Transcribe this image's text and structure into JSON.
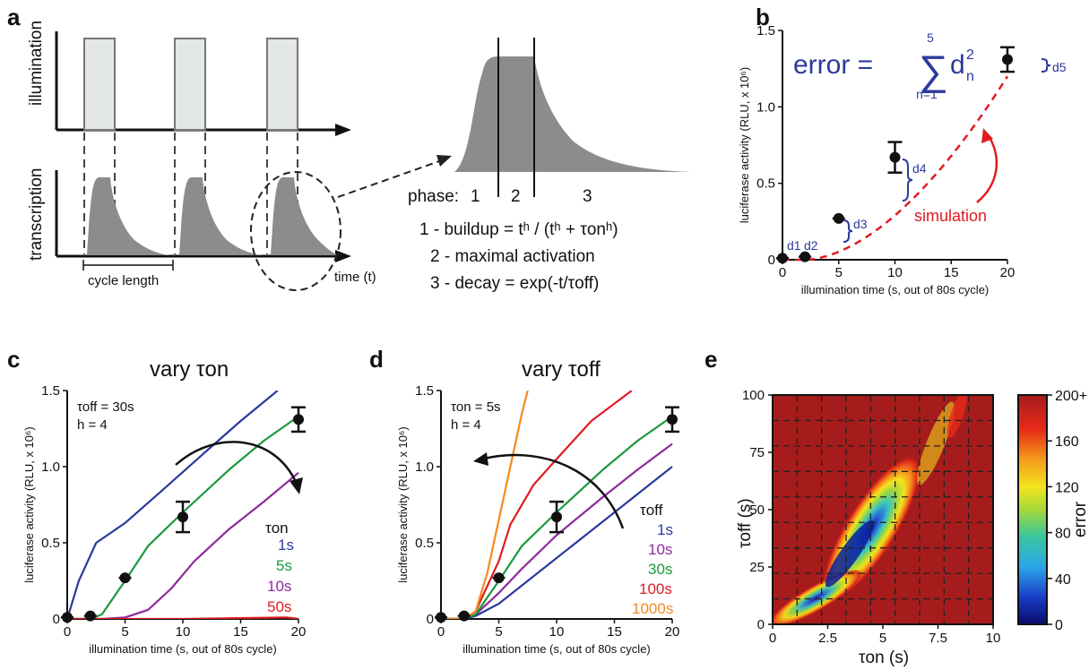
{
  "panels": {
    "a": {
      "letter": "a",
      "ylabel_top": "illumination",
      "ylabel_bottom": "transcription",
      "xlabel": "time (t)",
      "cycle_label": "cycle length",
      "phase_label": "phase:",
      "phase_numbers": [
        "1",
        "2",
        "3"
      ],
      "eq1": "1 - buildup = tʰ / (tʰ + τonʰ)",
      "eq2": "2 - maximal activation",
      "eq3": "3 - decay = exp(-t/τoff)"
    },
    "b": {
      "letter": "b",
      "error_label": "error =",
      "sum_top": "5",
      "sum_bottom": "n=1",
      "sum_term": "d",
      "sum_sub": "n",
      "sum_sup": "2",
      "sim_label": "simulation",
      "d_labels": [
        "d1",
        "d2",
        "d3",
        "d4",
        "d5"
      ]
    },
    "c": {
      "letter": "c",
      "title": "vary  τon",
      "params": [
        "τoff = 30s",
        "h = 4"
      ],
      "legend_title": "τon",
      "legend": [
        "1s",
        "5s",
        "10s",
        "50s"
      ]
    },
    "d": {
      "letter": "d",
      "title": "vary  τoff",
      "params": [
        "τon = 5s",
        "h = 4"
      ],
      "legend_title": "τoff",
      "legend": [
        "1s",
        "10s",
        "30s",
        "100s",
        "1000s"
      ]
    },
    "e": {
      "letter": "e",
      "xlabel": "τon (s)",
      "ylabel": "τoff (s)",
      "colorbar_label": "error",
      "colorbar_ticks": [
        "200+",
        "160",
        "120",
        "80",
        "40",
        "0"
      ]
    }
  },
  "colors": {
    "blue": "#2b3a9c",
    "green": "#1a9a3c",
    "purple": "#8e2a9c",
    "red": "#e11b22",
    "orange": "#f58a1f",
    "gray": "#8c8c8c",
    "light": "#e4e7e7",
    "heat_bg": "#a61c1c"
  },
  "chart_data": [
    {
      "id": "b",
      "type": "scatter",
      "xlabel": "illumination time (s, out of 80s cycle)",
      "ylabel": "luciferase activity (RLU, x 10⁶)",
      "xlim": [
        0,
        20
      ],
      "ylim": [
        0,
        1.5
      ],
      "xticks": [
        "0",
        "5",
        "10",
        "15",
        "20"
      ],
      "yticks": [
        "0",
        "0.5",
        "1.0",
        "1.5"
      ],
      "series": [
        {
          "x": [
            0,
            2,
            5,
            10,
            20
          ],
          "y": [
            0.01,
            0.02,
            0.27,
            0.67,
            1.31
          ],
          "err": [
            0.01,
            0.01,
            0.01,
            0.1,
            0.08
          ]
        }
      ],
      "simulation": {
        "x": [
          0,
          2,
          5,
          10,
          20
        ],
        "y": [
          0.0,
          0.0,
          0.05,
          0.35,
          1.2
        ]
      }
    },
    {
      "id": "c",
      "type": "line",
      "xlabel": "illumination time (s, out of 80s cycle)",
      "ylabel": "luciferase activity (RLU, x 10⁶)",
      "xlim": [
        0,
        20
      ],
      "ylim": [
        0,
        1.5
      ],
      "xticks": [
        "0",
        "5",
        "10",
        "15",
        "20"
      ],
      "yticks": [
        "0",
        "0.5",
        "1.0",
        "1.5"
      ],
      "series": [
        {
          "name": "1s",
          "x": [
            0,
            1,
            2.5,
            5,
            8,
            12,
            15,
            18.2
          ],
          "y": [
            0,
            0.25,
            0.5,
            0.63,
            0.83,
            1.1,
            1.3,
            1.5
          ]
        },
        {
          "name": "5s",
          "x": [
            0,
            2,
            3,
            5,
            7,
            10,
            14,
            17,
            20
          ],
          "y": [
            0,
            0,
            0.03,
            0.25,
            0.48,
            0.7,
            0.98,
            1.17,
            1.33
          ]
        },
        {
          "name": "10s",
          "x": [
            0,
            3,
            5,
            7,
            9,
            11,
            14,
            17,
            20
          ],
          "y": [
            0,
            0,
            0.01,
            0.06,
            0.2,
            0.38,
            0.59,
            0.77,
            0.96
          ]
        },
        {
          "name": "50s",
          "x": [
            0,
            10,
            19,
            20
          ],
          "y": [
            0,
            0,
            0.01,
            0.0
          ]
        }
      ],
      "points": {
        "x": [
          0,
          2,
          5,
          10,
          20
        ],
        "y": [
          0.01,
          0.02,
          0.27,
          0.67,
          1.31
        ],
        "err": [
          0.01,
          0.01,
          0.01,
          0.1,
          0.08
        ]
      }
    },
    {
      "id": "d",
      "type": "line",
      "xlabel": "illumination time (s, out of 80s cycle)",
      "ylabel": "luciferase activity (RLU, x 10⁶)",
      "xlim": [
        0,
        20
      ],
      "ylim": [
        0,
        1.5
      ],
      "xticks": [
        "0",
        "5",
        "10",
        "15",
        "20"
      ],
      "yticks": [
        "0",
        "0.5",
        "1.0",
        "1.5"
      ],
      "series": [
        {
          "name": "1s",
          "x": [
            0,
            2,
            3,
            5,
            7,
            10,
            14,
            17,
            20
          ],
          "y": [
            0,
            0,
            0.02,
            0.1,
            0.22,
            0.4,
            0.64,
            0.82,
            1.0
          ]
        },
        {
          "name": "10s",
          "x": [
            0,
            2,
            3,
            5,
            7,
            10,
            14,
            17,
            20
          ],
          "y": [
            0,
            0,
            0.03,
            0.17,
            0.33,
            0.55,
            0.8,
            0.98,
            1.15
          ]
        },
        {
          "name": "30s",
          "x": [
            0,
            2,
            3,
            5,
            7,
            10,
            14,
            17,
            20
          ],
          "y": [
            0,
            0,
            0.03,
            0.25,
            0.48,
            0.7,
            0.98,
            1.17,
            1.33
          ]
        },
        {
          "name": "100s",
          "x": [
            0,
            2,
            3,
            5,
            6,
            8,
            10,
            13,
            16.5
          ],
          "y": [
            0,
            0,
            0.05,
            0.38,
            0.62,
            0.88,
            1.05,
            1.3,
            1.5
          ]
        },
        {
          "name": "1000s",
          "x": [
            0,
            2,
            3,
            4,
            5,
            6,
            7,
            7.5
          ],
          "y": [
            0,
            0,
            0.05,
            0.3,
            0.65,
            1.0,
            1.35,
            1.5
          ]
        }
      ],
      "points": {
        "x": [
          0,
          2,
          5,
          10,
          20
        ],
        "y": [
          0.01,
          0.02,
          0.27,
          0.67,
          1.31
        ],
        "err": [
          0.01,
          0.01,
          0.01,
          0.1,
          0.08
        ]
      }
    },
    {
      "id": "e",
      "type": "heatmap",
      "xlabel": "τon (s)",
      "ylabel": "τoff (s)",
      "xlim": [
        0,
        10
      ],
      "ylim": [
        0,
        100
      ],
      "xticks": [
        "0",
        "2.5",
        "5",
        "7.5",
        "10"
      ],
      "yticks": [
        "0",
        "25",
        "50",
        "75",
        "100"
      ],
      "colorbar": {
        "range": [
          0,
          200
        ],
        "ticks": [
          "0",
          "40",
          "80",
          "120",
          "160",
          "200+"
        ],
        "label": "error"
      },
      "minimum": {
        "x": 3.6,
        "y": 25
      }
    }
  ]
}
